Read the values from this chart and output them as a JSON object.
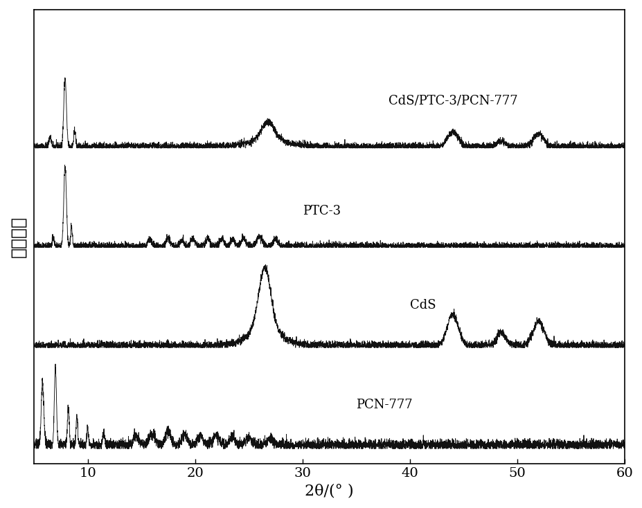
{
  "xlim": [
    5,
    60
  ],
  "xlabel": "2θ/(° )",
  "ylabel": "相对强度",
  "line_color": "#111111",
  "background_color": "#ffffff",
  "labels": [
    "CdS/PTC-3/PCN-777",
    "PTC-3",
    "CdS",
    "PCN-777"
  ],
  "offsets": [
    2.4,
    1.6,
    0.8,
    0.0
  ],
  "noise_seed": 42,
  "figsize": [
    9.28,
    7.34
  ],
  "dpi": 100,
  "font_size_axis": 16,
  "font_size_tick": 14,
  "font_size_label": 13
}
